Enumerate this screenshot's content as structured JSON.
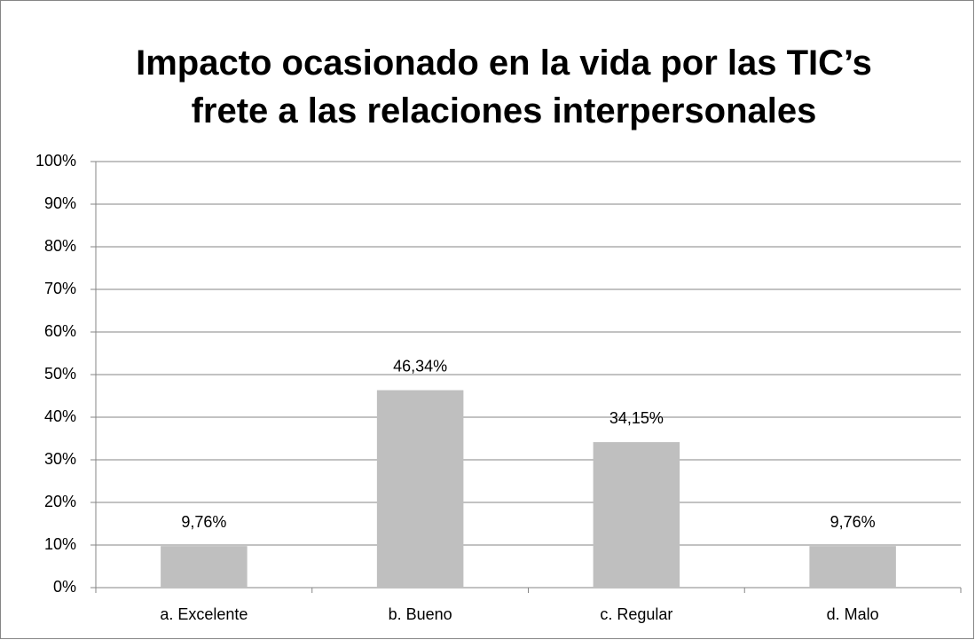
{
  "chart_data": {
    "type": "bar",
    "title": "Impacto ocasionado en la vida por las TIC’s\nfrete a las relaciones interpersonales",
    "categories": [
      "a. Excelente",
      "b. Bueno",
      "c. Regular",
      "d. Malo"
    ],
    "values": [
      9.76,
      46.34,
      34.15,
      9.76
    ],
    "value_labels": [
      "9,76%",
      "46,34%",
      "34,15%",
      "9,76%"
    ],
    "color": "#bfbfbf",
    "ylim": [
      0,
      100
    ],
    "yticks": [
      {
        "value": 0,
        "label": "0%"
      },
      {
        "value": 10,
        "label": "10%"
      },
      {
        "value": 20,
        "label": "20%"
      },
      {
        "value": 30,
        "label": "30%"
      },
      {
        "value": 40,
        "label": "40%"
      },
      {
        "value": 50,
        "label": "50%"
      },
      {
        "value": 60,
        "label": "60%"
      },
      {
        "value": 70,
        "label": "70%"
      },
      {
        "value": 80,
        "label": "80%"
      },
      {
        "value": 90,
        "label": "90%"
      },
      {
        "value": 100,
        "label": "100%"
      }
    ],
    "grid": true
  }
}
